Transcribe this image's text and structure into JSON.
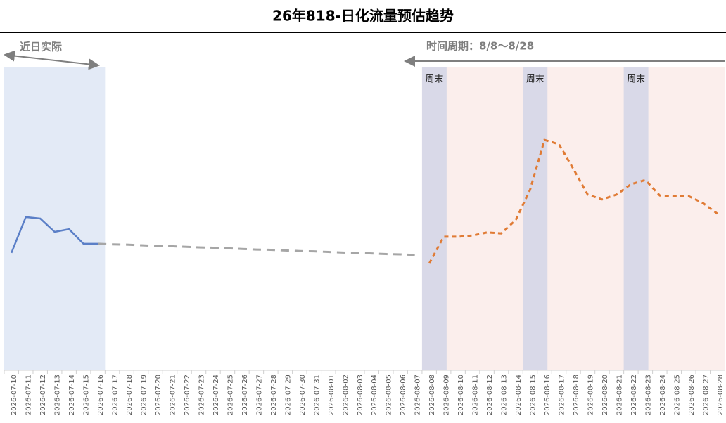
{
  "chart_data": {
    "type": "line",
    "title": "26年818-日化流量预估趋势",
    "categories": [
      "2026-07-10",
      "2026-07-11",
      "2026-07-12",
      "2026-07-13",
      "2026-07-14",
      "2026-07-15",
      "2026-07-16",
      "2026-07-17",
      "2026-07-18",
      "2026-07-19",
      "2026-07-20",
      "2026-07-21",
      "2026-07-22",
      "2026-07-23",
      "2026-07-24",
      "2026-07-25",
      "2026-07-26",
      "2026-07-27",
      "2026-07-28",
      "2026-07-29",
      "2026-07-30",
      "2026-07-31",
      "2026-08-01",
      "2026-08-02",
      "2026-08-03",
      "2026-08-04",
      "2026-08-05",
      "2026-08-06",
      "2026-08-07",
      "2026-08-08",
      "2026-08-09",
      "2026-08-10",
      "2026-08-11",
      "2026-08-12",
      "2026-08-13",
      "2026-08-14",
      "2026-08-15",
      "2026-08-16",
      "2026-08-17",
      "2026-08-18",
      "2026-08-19",
      "2026-08-20",
      "2026-08-21",
      "2026-08-22",
      "2026-08-23",
      "2026-08-24",
      "2026-08-25",
      "2026-08-26",
      "2026-08-27",
      "2026-08-28"
    ],
    "series": [
      {
        "color": "#5b7fc7",
        "line_style": "solid",
        "values": [
          38.7,
          50.5,
          50.0,
          45.6,
          46.5,
          41.7,
          41.7,
          null,
          null,
          null,
          null,
          null,
          null,
          null,
          null,
          null,
          null,
          null,
          null,
          null,
          null,
          null,
          null,
          null,
          null,
          null,
          null,
          null,
          null,
          null,
          null,
          null,
          null,
          null,
          null,
          null,
          null,
          null,
          null,
          null,
          null,
          null,
          null,
          null,
          null,
          null,
          null,
          null,
          null,
          null
        ]
      },
      {
        "color": "#a6a6a6",
        "line_style": "dashed",
        "values": [
          null,
          null,
          null,
          null,
          null,
          null,
          41.7,
          41.5,
          41.4,
          41.2,
          41.0,
          40.9,
          40.7,
          40.5,
          40.4,
          40.2,
          40.0,
          39.8,
          39.7,
          39.5,
          39.3,
          39.2,
          39.0,
          38.8,
          38.7,
          38.5,
          38.3,
          38.2,
          38.0,
          null,
          null,
          null,
          null,
          null,
          null,
          null,
          null,
          null,
          null,
          null,
          null,
          null,
          null,
          null,
          null,
          null,
          null,
          null,
          null,
          null
        ]
      },
      {
        "color": "#e07b35",
        "line_style": "dotted",
        "values": [
          null,
          null,
          null,
          null,
          null,
          null,
          null,
          null,
          null,
          null,
          null,
          null,
          null,
          null,
          null,
          null,
          null,
          null,
          null,
          null,
          null,
          null,
          null,
          null,
          null,
          null,
          null,
          null,
          null,
          35.2,
          44.0,
          44.0,
          44.4,
          45.4,
          45.1,
          49.5,
          59.5,
          75.9,
          74.5,
          66.4,
          57.9,
          56.3,
          57.9,
          61.3,
          62.7,
          57.6,
          57.4,
          57.4,
          55.1,
          51.6
        ]
      }
    ],
    "ylim": [
      0,
      100
    ],
    "annotations": {
      "recent": "近日实际",
      "period": "时间周期：8/8～8/28",
      "weekend": [
        "周末",
        "周末",
        "周末"
      ]
    }
  }
}
